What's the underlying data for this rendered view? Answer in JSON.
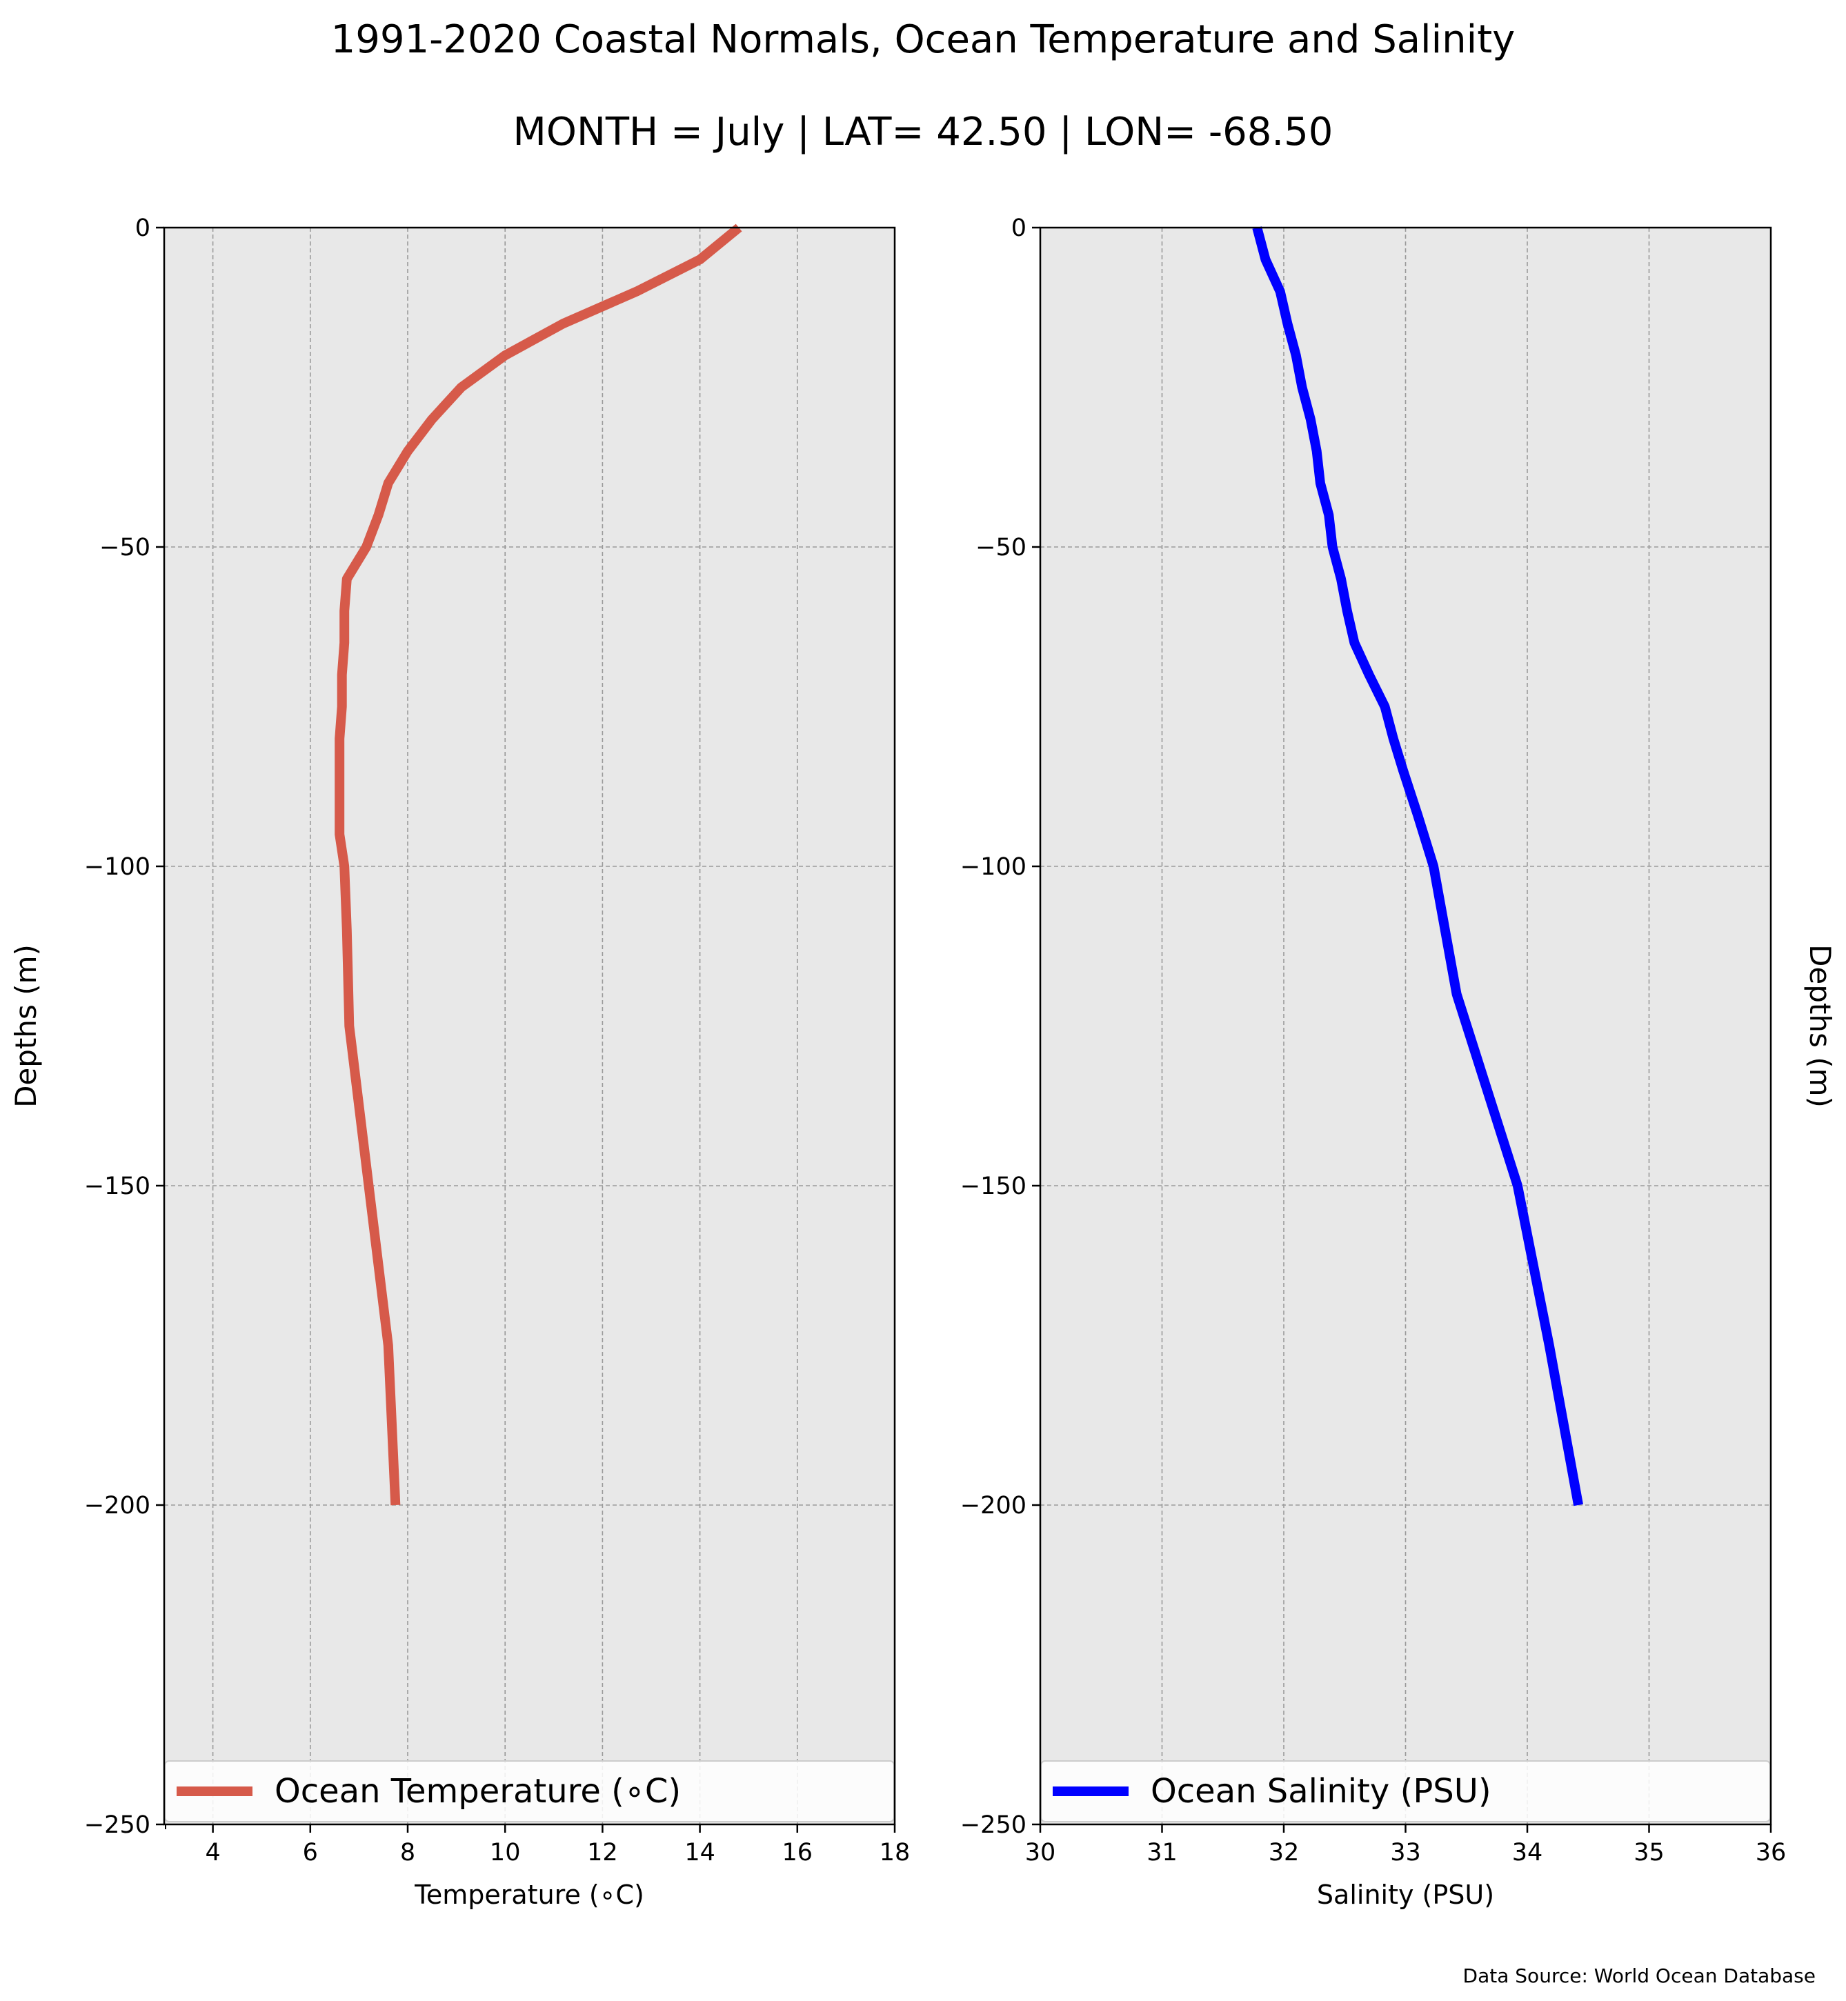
{
  "figure": {
    "title": "1991-2020 Coastal Normals, Ocean Temperature and Salinity",
    "subtitle": "MONTH = July | LAT= 42.50 | LON= -68.50",
    "source": "Data Source: World Ocean Database"
  },
  "chart_data": [
    {
      "type": "line",
      "xlabel": "Temperature (∘C)",
      "ylabel": "Depths (m)",
      "xlim": [
        3,
        18
      ],
      "ylim": [
        -250,
        0
      ],
      "xticks": [
        4,
        6,
        8,
        10,
        12,
        14,
        16,
        18
      ],
      "xtick_labels": [
        "4",
        "6",
        "8",
        "10",
        "12",
        "14",
        "16",
        "18"
      ],
      "yticks": [
        0,
        -50,
        -100,
        -150,
        -200,
        -250
      ],
      "ytick_labels": [
        "0",
        "−50",
        "−100",
        "−150",
        "−200",
        "−250"
      ],
      "grid": true,
      "legend_position": "bottom",
      "series": [
        {
          "name": "Ocean Temperature (∘C)",
          "color": "#d65a4a",
          "x": [
            14.8,
            14.0,
            12.7,
            11.2,
            10.0,
            9.1,
            8.5,
            8.0,
            7.6,
            7.4,
            7.15,
            6.75,
            6.7,
            6.7,
            6.65,
            6.65,
            6.6,
            6.6,
            6.6,
            6.7,
            6.75,
            6.8,
            7.2,
            7.6,
            7.75
          ],
          "y": [
            0,
            -5,
            -10,
            -15,
            -20,
            -25,
            -30,
            -35,
            -40,
            -45,
            -50,
            -55,
            -60,
            -65,
            -70,
            -75,
            -80,
            -90,
            -95,
            -100,
            -110,
            -125,
            -150,
            -175,
            -200
          ]
        }
      ]
    },
    {
      "type": "line",
      "xlabel": "Salinity (PSU)",
      "ylabel": "Depths (m)",
      "xlim": [
        30,
        36
      ],
      "ylim": [
        -250,
        0
      ],
      "xticks": [
        30,
        31,
        32,
        33,
        34,
        35,
        36
      ],
      "xtick_labels": [
        "30",
        "31",
        "32",
        "33",
        "34",
        "35",
        "36"
      ],
      "yticks": [
        0,
        -50,
        -100,
        -150,
        -200,
        -250
      ],
      "ytick_labels": [
        "0",
        "−50",
        "−100",
        "−150",
        "−200",
        "−250"
      ],
      "grid": true,
      "legend_position": "bottom",
      "series": [
        {
          "name": "Ocean Salinity (PSU)",
          "color": "#0000ff",
          "x": [
            31.78,
            31.85,
            31.97,
            32.03,
            32.1,
            32.15,
            32.22,
            32.27,
            32.3,
            32.37,
            32.4,
            32.47,
            32.52,
            32.58,
            32.7,
            32.83,
            32.9,
            32.98,
            33.1,
            33.23,
            33.42,
            33.92,
            34.18,
            34.42
          ],
          "y": [
            0,
            -5,
            -10,
            -15,
            -20,
            -25,
            -30,
            -35,
            -40,
            -45,
            -50,
            -55,
            -60,
            -65,
            -70,
            -75,
            -80,
            -85,
            -92,
            -100,
            -120,
            -150,
            -175,
            -200
          ]
        }
      ]
    }
  ]
}
